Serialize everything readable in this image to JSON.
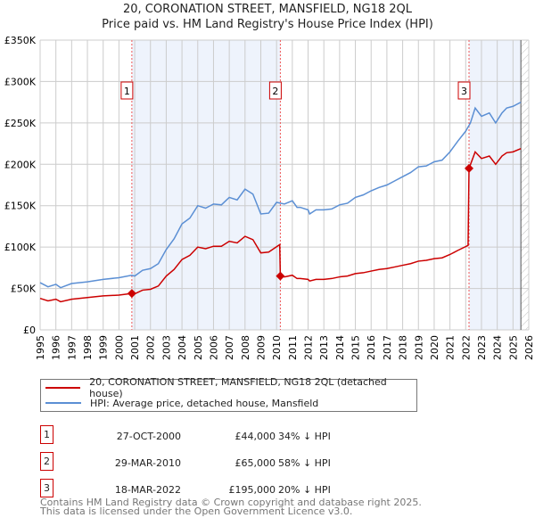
{
  "title": "20, CORONATION STREET, MANSFIELD, NG18 2QL",
  "subtitle": "Price paid vs. HM Land Registry's House Price Index (HPI)",
  "chart_data": {
    "type": "line",
    "xlim": [
      1995,
      2026
    ],
    "ylim": [
      0,
      350000
    ],
    "yticks": [
      {
        "v": 0,
        "label": "£0"
      },
      {
        "v": 50000,
        "label": "£50K"
      },
      {
        "v": 100000,
        "label": "£100K"
      },
      {
        "v": 150000,
        "label": "£150K"
      },
      {
        "v": 200000,
        "label": "£200K"
      },
      {
        "v": 250000,
        "label": "£250K"
      },
      {
        "v": 300000,
        "label": "£300K"
      },
      {
        "v": 350000,
        "label": "£350K"
      }
    ],
    "xticks": [
      "1995",
      "1996",
      "1997",
      "1998",
      "1999",
      "2000",
      "2001",
      "2002",
      "2003",
      "2004",
      "2005",
      "2006",
      "2007",
      "2008",
      "2009",
      "2010",
      "2011",
      "2012",
      "2013",
      "2014",
      "2015",
      "2016",
      "2017",
      "2018",
      "2019",
      "2020",
      "2021",
      "2022",
      "2023",
      "2024",
      "2025",
      "2026"
    ],
    "shaded": [
      [
        2000.82,
        2010.24
      ],
      [
        2022.21,
        2025.5
      ]
    ],
    "hatched_from": 2025.5,
    "series": [
      {
        "name": "20, CORONATION STREET, MANSFIELD, NG18 2QL (detached house)",
        "color": "#cc0000",
        "x": [
          1995,
          1995.5,
          1996,
          1996.3,
          1997,
          1998,
          1999,
          2000,
          2000.82,
          2001,
          2001.5,
          2002,
          2002.5,
          2003,
          2003.5,
          2004,
          2004.5,
          2005,
          2005.5,
          2006,
          2006.5,
          2007,
          2007.5,
          2008,
          2008.5,
          2009,
          2009.5,
          2010.2,
          2010.24,
          2010.5,
          2011,
          2011.3,
          2011.5,
          2012,
          2012.1,
          2012.5,
          2013,
          2013.5,
          2014,
          2014.5,
          2015,
          2015.5,
          2016,
          2016.5,
          2017,
          2017.5,
          2018,
          2018.5,
          2019,
          2019.5,
          2020,
          2020.5,
          2021,
          2021.5,
          2022.15,
          2022.21,
          2022.6,
          2023,
          2023.5,
          2023.9,
          2024.3,
          2024.6,
          2025,
          2025.5
        ],
        "y": [
          38,
          35,
          37,
          34,
          37,
          39,
          41,
          42,
          44,
          43.5,
          48,
          49,
          53,
          65,
          73,
          85,
          90,
          100,
          98,
          101,
          101,
          107,
          105,
          113,
          109,
          93,
          94,
          103,
          65,
          64,
          66,
          62,
          62,
          61,
          59,
          61,
          61,
          62,
          64,
          65,
          68,
          69,
          71,
          73,
          74,
          76,
          78,
          80,
          83,
          84,
          86,
          87,
          91,
          96,
          102,
          195,
          215,
          207,
          210,
          200,
          210,
          214,
          215,
          219
        ]
      },
      {
        "name": "HPI: Average price, detached house, Mansfield",
        "color": "#5b8fd4",
        "x": [
          1995,
          1995.5,
          1996,
          1996.3,
          1997,
          1998,
          1999,
          2000,
          2000.8,
          2001,
          2001.5,
          2002,
          2002.5,
          2003,
          2003.5,
          2004,
          2004.5,
          2005,
          2005.5,
          2006,
          2006.5,
          2007,
          2007.5,
          2008,
          2008.5,
          2009,
          2009.5,
          2010,
          2010.5,
          2011,
          2011.3,
          2011.5,
          2012,
          2012.1,
          2012.5,
          2013,
          2013.5,
          2014,
          2014.5,
          2015,
          2015.5,
          2016,
          2016.5,
          2017,
          2017.5,
          2018,
          2018.5,
          2019,
          2019.5,
          2020,
          2020.5,
          2021,
          2021.5,
          2022,
          2022.3,
          2022.6,
          2023,
          2023.5,
          2023.9,
          2024.3,
          2024.6,
          2025,
          2025.5
        ],
        "y": [
          57,
          52,
          55,
          51,
          56,
          58,
          61,
          63,
          66,
          65,
          72,
          74,
          80,
          97,
          110,
          128,
          135,
          150,
          147,
          152,
          151,
          160,
          157,
          170,
          164,
          140,
          141,
          154,
          152,
          156,
          148,
          148,
          145,
          140,
          145,
          145,
          146,
          151,
          153,
          160,
          163,
          168,
          172,
          175,
          180,
          185,
          190,
          197,
          198,
          203,
          205,
          215,
          228,
          240,
          250,
          268,
          258,
          262,
          250,
          262,
          268,
          270,
          275
        ]
      }
    ],
    "y_units": "thousands GBP",
    "sales": [
      {
        "label": "1",
        "x": 2000.82,
        "y": 44
      },
      {
        "label": "2",
        "x": 2010.24,
        "y": 65
      },
      {
        "label": "3",
        "x": 2022.21,
        "y": 195
      }
    ]
  },
  "legend": [
    "20, CORONATION STREET, MANSFIELD, NG18 2QL (detached house)",
    "HPI: Average price, detached house, Mansfield"
  ],
  "transactions": [
    {
      "num": "1",
      "date": "27-OCT-2000",
      "price": "£44,000",
      "hpi": "34% ↓ HPI"
    },
    {
      "num": "2",
      "date": "29-MAR-2010",
      "price": "£65,000",
      "hpi": "58% ↓ HPI"
    },
    {
      "num": "3",
      "date": "18-MAR-2022",
      "price": "£195,000",
      "hpi": "20% ↓ HPI"
    }
  ],
  "footer": [
    "Contains HM Land Registry data © Crown copyright and database right 2025.",
    "This data is licensed under the Open Government Licence v3.0."
  ]
}
